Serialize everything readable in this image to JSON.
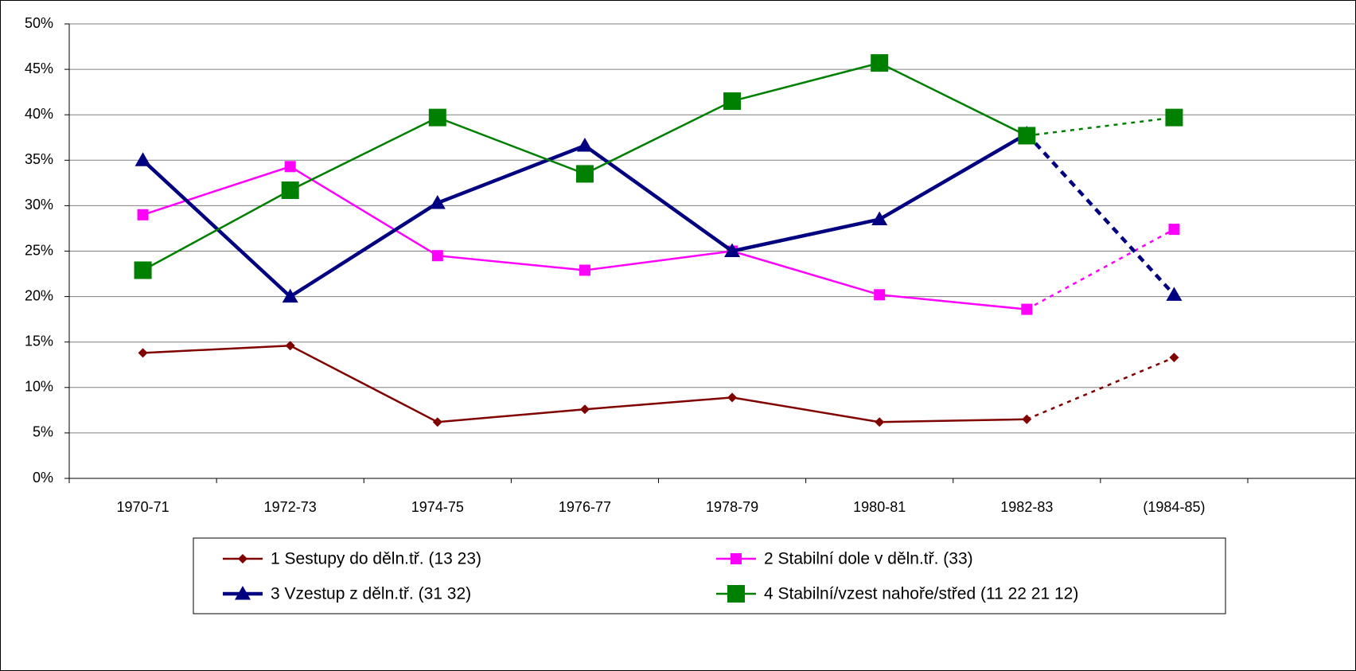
{
  "chart_data": {
    "type": "line",
    "categories": [
      "1970-71",
      "1972-73",
      "1974-75",
      "1976-77",
      "1978-79",
      "1980-81",
      "1982-83",
      "(1984-85)"
    ],
    "series": [
      {
        "name": "1 Sestupy do děln.tř. (13 23)",
        "color": "#800000",
        "marker": "diamond",
        "values": [
          13.8,
          14.6,
          6.2,
          7.6,
          8.9,
          6.2,
          6.5,
          13.3
        ]
      },
      {
        "name": "2 Stabilní dole v děln.tř. (33)",
        "color": "#ff00ff",
        "marker": "square",
        "values": [
          29.0,
          34.3,
          24.5,
          22.9,
          25.0,
          20.2,
          18.6,
          27.4
        ]
      },
      {
        "name": "3 Vzestup z děln.tř. (31 32)",
        "color": "#000080",
        "marker": "triangle",
        "values": [
          35.0,
          20.0,
          30.3,
          36.6,
          25.0,
          28.5,
          37.9,
          20.2
        ]
      },
      {
        "name": "4 Stabilní/vzest nahoře/střed (11 22 21 12)",
        "color": "#008000",
        "marker": "square",
        "values": [
          22.9,
          31.7,
          39.7,
          33.5,
          41.5,
          45.7,
          37.7,
          39.7
        ]
      }
    ],
    "ylim": [
      0,
      50
    ],
    "yticks": [
      {
        "value": 0,
        "label": "0%"
      },
      {
        "value": 5,
        "label": "5%"
      },
      {
        "value": 10,
        "label": "10%"
      },
      {
        "value": 15,
        "label": "15%"
      },
      {
        "value": 20,
        "label": "20%"
      },
      {
        "value": 25,
        "label": "25%"
      },
      {
        "value": 30,
        "label": "30%"
      },
      {
        "value": 35,
        "label": "35%"
      },
      {
        "value": 40,
        "label": "40%"
      },
      {
        "value": 45,
        "label": "45%"
      },
      {
        "value": 50,
        "label": "50%"
      }
    ],
    "grid": true,
    "last_segment_style": "dotted",
    "legend": "bottom"
  }
}
